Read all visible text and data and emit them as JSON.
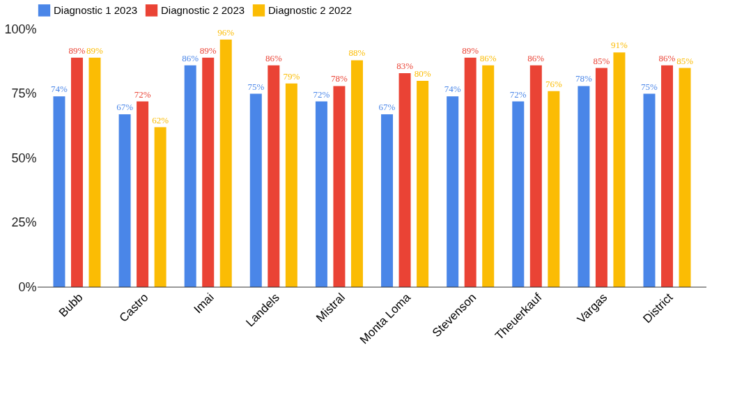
{
  "chart_data": {
    "type": "bar",
    "categories": [
      "Bubb",
      "Castro",
      "Imai",
      "Landels",
      "Mistral",
      "Monta Loma",
      "Stevenson",
      "Theuerkauf",
      "Vargas",
      "District"
    ],
    "series": [
      {
        "name": "Diagnostic 1 2023",
        "color": "#4a86e8",
        "values": [
          74,
          67,
          86,
          75,
          72,
          67,
          74,
          72,
          78,
          75
        ],
        "value_labels": [
          "74%",
          "67%",
          "86%",
          "75%",
          "72%",
          "67%",
          "74%",
          "72%",
          "78%",
          "75%"
        ]
      },
      {
        "name": "Diagnostic 2 2023",
        "color": "#ea4335",
        "values": [
          89,
          72,
          89,
          86,
          78,
          83,
          89,
          86,
          85,
          86
        ],
        "value_labels": [
          "89%",
          "72%",
          "89%",
          "86%",
          "78%",
          "83%",
          "89%",
          "86%",
          "85%",
          "86%"
        ]
      },
      {
        "name": "Diagnostic 2 2022",
        "color": "#fbbc04",
        "values": [
          89,
          62,
          96,
          79,
          88,
          80,
          86,
          76,
          91,
          85
        ],
        "value_labels": [
          "89%",
          "62%",
          "96%",
          "79%",
          "88%",
          "80%",
          "86%",
          "76%",
          "91%",
          "85%"
        ]
      }
    ],
    "ylim": [
      0,
      100
    ],
    "yticks": [
      {
        "value": 0,
        "label": "0%"
      },
      {
        "value": 25,
        "label": "25%"
      },
      {
        "value": 50,
        "label": "50%"
      },
      {
        "value": 75,
        "label": "75%"
      },
      {
        "value": 100,
        "label": "100%"
      }
    ],
    "grid": false,
    "legend": "top"
  }
}
